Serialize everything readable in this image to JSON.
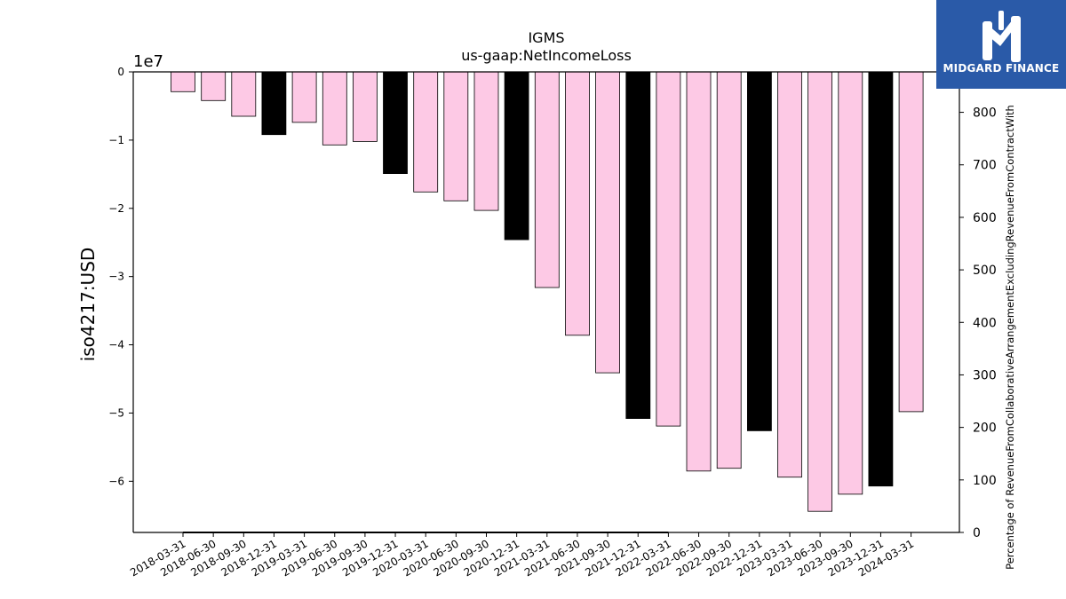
{
  "logo": {
    "text": "MIDGARD FINANCE",
    "icon": "midgard-logo-icon",
    "bg_color": "#2a5aa8"
  },
  "chart_data": {
    "type": "bar",
    "title": "IGMS",
    "subtitle": "us-gaap:NetIncomeLoss",
    "ylabel": "iso4217:USD",
    "y2label": "Percentage of RevenueFromCollaborativeArrangementExcludingRevenueFromContractWith",
    "y_exponent_label": "1e7",
    "ylim": [
      -67500000,
      0
    ],
    "yticks": [
      0,
      -10000000,
      -20000000,
      -30000000,
      -40000000,
      -50000000,
      -60000000
    ],
    "ytick_labels": [
      "0",
      "−1",
      "−2",
      "−3",
      "−4",
      "−5",
      "−6"
    ],
    "y2lim": [
      0,
      877
    ],
    "y2ticks": [
      0,
      100,
      200,
      300,
      400,
      500,
      600,
      700,
      800
    ],
    "y2tick_labels": [
      "0",
      "100",
      "200",
      "300",
      "400",
      "500",
      "600",
      "700",
      "800"
    ],
    "categories": [
      "2018-03-31",
      "2018-06-30",
      "2018-09-30",
      "2018-12-31",
      "2019-03-31",
      "2019-06-30",
      "2019-09-30",
      "2019-12-31",
      "2020-03-31",
      "2020-06-30",
      "2020-09-30",
      "2020-12-31",
      "2021-03-31",
      "2021-06-30",
      "2021-09-30",
      "2021-12-31",
      "2022-03-31",
      "2022-06-30",
      "2022-09-30",
      "2022-12-31",
      "2023-03-31",
      "2023-06-30",
      "2023-09-30",
      "2023-12-31",
      "2024-03-31"
    ],
    "values": [
      -2900000,
      -4200000,
      -6500000,
      -9200000,
      -7400000,
      -10700000,
      -10200000,
      -14900000,
      -17600000,
      -18900000,
      -20300000,
      -24600000,
      -31600000,
      -38600000,
      -44100000,
      -50800000,
      -51900000,
      -58500000,
      -58100000,
      -52600000,
      -59400000,
      -64400000,
      -61900000,
      -60700000,
      -49800000
    ],
    "annual": [
      false,
      false,
      false,
      true,
      false,
      false,
      false,
      true,
      false,
      false,
      false,
      true,
      false,
      false,
      false,
      true,
      false,
      false,
      false,
      true,
      false,
      false,
      false,
      true,
      false
    ],
    "colors": {
      "quarter": "#fdc9e5",
      "annual": "#000000",
      "edge": "#000000"
    },
    "secondary_line": {
      "x_start": "2018-03-31",
      "x_end": "2022-03-31",
      "value": 0
    },
    "grid": false,
    "legend": "none"
  }
}
